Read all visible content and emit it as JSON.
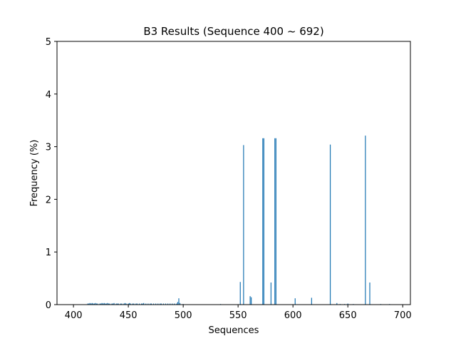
{
  "chart_data": {
    "type": "bar",
    "title": "B3 Results (Sequence 400 ~ 692)",
    "xlabel": "Sequences",
    "ylabel": "Frequency (%)",
    "xlim": [
      385,
      707
    ],
    "ylim": [
      0,
      5
    ],
    "x_ticks": [
      400,
      450,
      500,
      550,
      600,
      650,
      700
    ],
    "y_ticks": [
      0,
      1,
      2,
      3,
      4,
      5
    ],
    "grid": false,
    "bar_color": "#1f77b4",
    "bars": [
      {
        "x": 413,
        "y": 0.02
      },
      {
        "x": 414,
        "y": 0.02
      },
      {
        "x": 415,
        "y": 0.03
      },
      {
        "x": 416,
        "y": 0.02
      },
      {
        "x": 417,
        "y": 0.03
      },
      {
        "x": 418,
        "y": 0.02
      },
      {
        "x": 419,
        "y": 0.02
      },
      {
        "x": 420,
        "y": 0.03
      },
      {
        "x": 421,
        "y": 0.02
      },
      {
        "x": 422,
        "y": 0.02
      },
      {
        "x": 424,
        "y": 0.02
      },
      {
        "x": 425,
        "y": 0.02
      },
      {
        "x": 426,
        "y": 0.03
      },
      {
        "x": 427,
        "y": 0.02
      },
      {
        "x": 428,
        "y": 0.03
      },
      {
        "x": 429,
        "y": 0.02
      },
      {
        "x": 430,
        "y": 0.02
      },
      {
        "x": 431,
        "y": 0.03
      },
      {
        "x": 432,
        "y": 0.02
      },
      {
        "x": 433,
        "y": 0.02
      },
      {
        "x": 435,
        "y": 0.02
      },
      {
        "x": 436,
        "y": 0.02
      },
      {
        "x": 437,
        "y": 0.03
      },
      {
        "x": 439,
        "y": 0.02
      },
      {
        "x": 440,
        "y": 0.02
      },
      {
        "x": 441,
        "y": 0.02
      },
      {
        "x": 443,
        "y": 0.02
      },
      {
        "x": 444,
        "y": 0.02
      },
      {
        "x": 446,
        "y": 0.02
      },
      {
        "x": 447,
        "y": 0.03
      },
      {
        "x": 448,
        "y": 0.02
      },
      {
        "x": 450,
        "y": 0.02
      },
      {
        "x": 451,
        "y": 0.03
      },
      {
        "x": 452,
        "y": 0.02
      },
      {
        "x": 454,
        "y": 0.02
      },
      {
        "x": 455,
        "y": 0.02
      },
      {
        "x": 457,
        "y": 0.02
      },
      {
        "x": 458,
        "y": 0.02
      },
      {
        "x": 460,
        "y": 0.02
      },
      {
        "x": 462,
        "y": 0.02
      },
      {
        "x": 463,
        "y": 0.02
      },
      {
        "x": 464,
        "y": 0.03
      },
      {
        "x": 466,
        "y": 0.02
      },
      {
        "x": 468,
        "y": 0.02
      },
      {
        "x": 470,
        "y": 0.02
      },
      {
        "x": 471,
        "y": 0.02
      },
      {
        "x": 473,
        "y": 0.02
      },
      {
        "x": 475,
        "y": 0.02
      },
      {
        "x": 477,
        "y": 0.02
      },
      {
        "x": 479,
        "y": 0.02
      },
      {
        "x": 480,
        "y": 0.02
      },
      {
        "x": 482,
        "y": 0.02
      },
      {
        "x": 484,
        "y": 0.02
      },
      {
        "x": 486,
        "y": 0.02
      },
      {
        "x": 488,
        "y": 0.02
      },
      {
        "x": 490,
        "y": 0.02
      },
      {
        "x": 492,
        "y": 0.02
      },
      {
        "x": 494,
        "y": 0.02
      },
      {
        "x": 495,
        "y": 0.05
      },
      {
        "x": 496,
        "y": 0.12
      },
      {
        "x": 497,
        "y": 0.03
      },
      {
        "x": 500,
        "y": 0.01
      },
      {
        "x": 534,
        "y": 0.01
      },
      {
        "x": 552,
        "y": 0.43
      },
      {
        "x": 555,
        "y": 3.03
      },
      {
        "x": 561,
        "y": 0.16
      },
      {
        "x": 562,
        "y": 0.14
      },
      {
        "x": 572.5,
        "y": 3.16
      },
      {
        "x": 573.5,
        "y": 3.16
      },
      {
        "x": 580,
        "y": 0.42
      },
      {
        "x": 583.5,
        "y": 3.16
      },
      {
        "x": 584.5,
        "y": 3.16
      },
      {
        "x": 602,
        "y": 0.12
      },
      {
        "x": 617,
        "y": 0.13
      },
      {
        "x": 634,
        "y": 3.04
      },
      {
        "x": 640,
        "y": 0.03
      },
      {
        "x": 643,
        "y": 0.01
      },
      {
        "x": 647,
        "y": 0.01
      },
      {
        "x": 650,
        "y": 0.02
      },
      {
        "x": 655,
        "y": 0.01
      },
      {
        "x": 666,
        "y": 3.21
      },
      {
        "x": 670,
        "y": 0.42
      },
      {
        "x": 680,
        "y": 0.01
      },
      {
        "x": 688,
        "y": 0.01
      }
    ]
  }
}
